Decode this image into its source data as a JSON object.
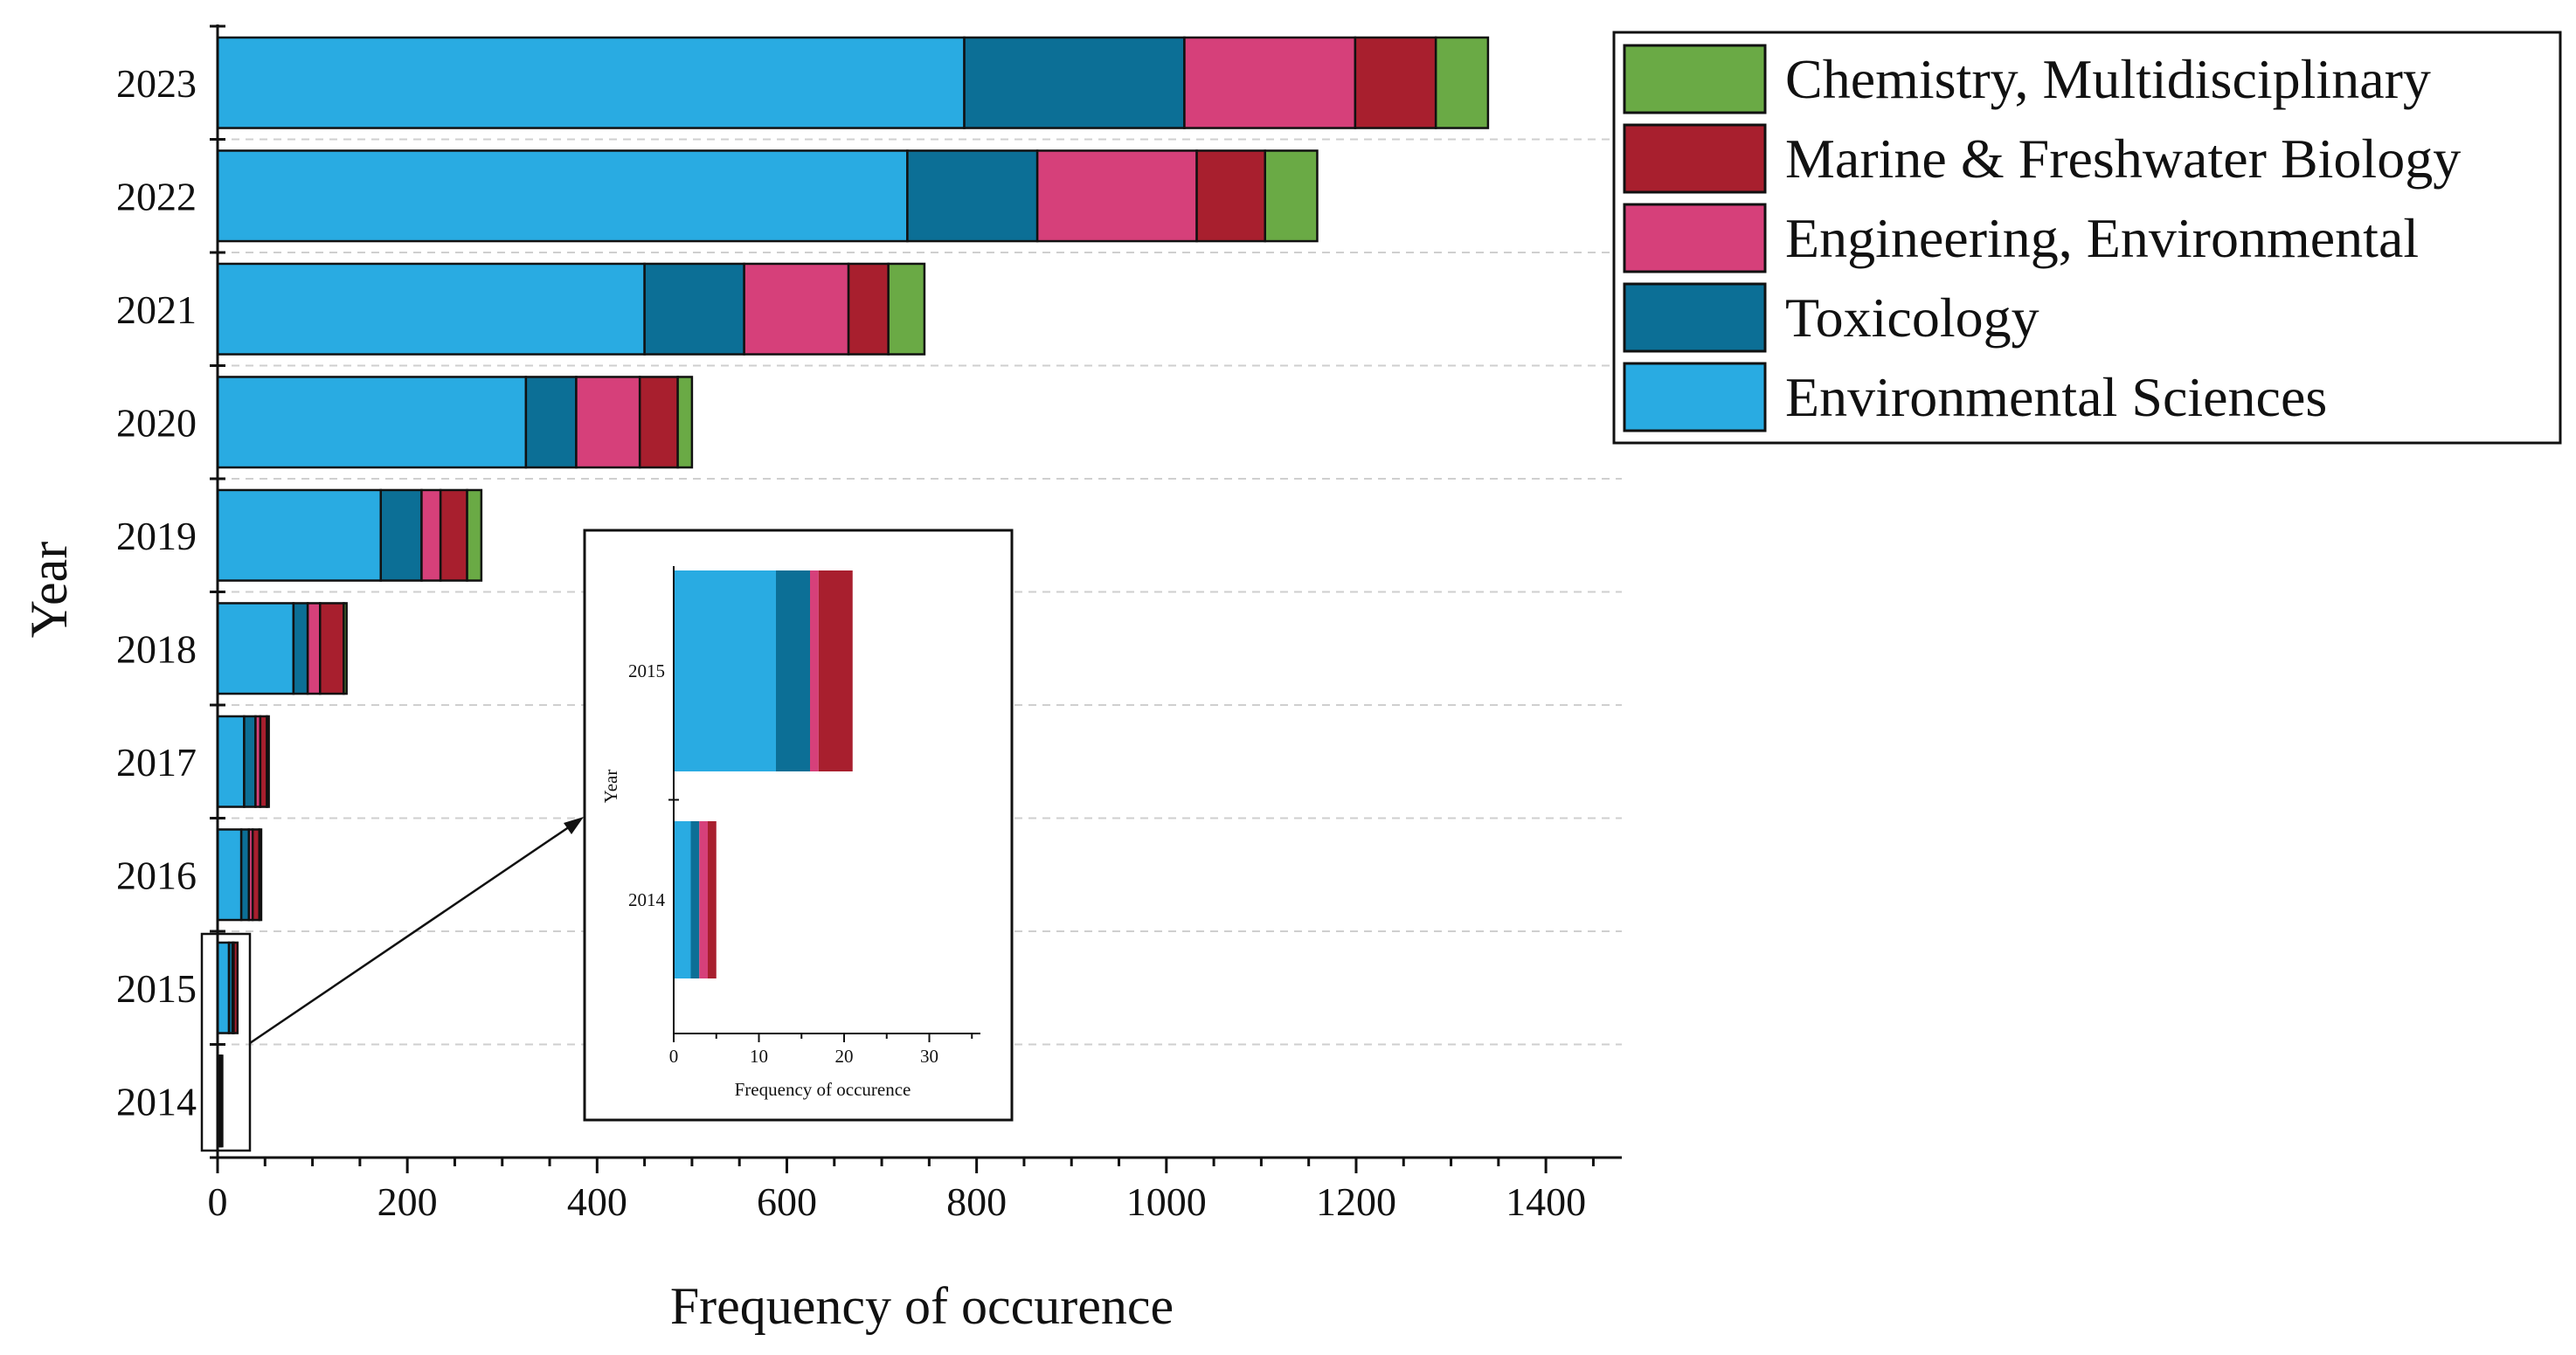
{
  "chart_data": {
    "type": "bar",
    "orientation": "horizontal",
    "stacked": true,
    "xlabel": "Frequency of occurence",
    "ylabel": "Year",
    "xlim": [
      0,
      1480
    ],
    "xticks": [
      0,
      200,
      400,
      600,
      800,
      1000,
      1200,
      1400
    ],
    "grid": "horizontal dashed",
    "legend_position": "top-right",
    "categories": [
      "2023",
      "2022",
      "2021",
      "2020",
      "2019",
      "2018",
      "2017",
      "2016",
      "2015",
      "2014"
    ],
    "series": [
      {
        "name": "Environmental Sciences",
        "color": "#29abe2",
        "values": [
          787,
          727,
          450,
          325,
          172,
          80,
          28,
          25,
          12,
          2
        ]
      },
      {
        "name": "Toxicology",
        "color": "#0c6f96",
        "values": [
          232,
          137,
          105,
          53,
          43,
          15,
          12,
          8,
          4,
          1
        ]
      },
      {
        "name": "Engineering, Environmental",
        "color": "#d6407a",
        "values": [
          180,
          168,
          110,
          67,
          20,
          13,
          5,
          4,
          1,
          1
        ]
      },
      {
        "name": "Marine & Freshwater Biology",
        "color": "#a81f2e",
        "values": [
          85,
          72,
          42,
          40,
          28,
          25,
          7,
          7,
          4,
          1
        ]
      },
      {
        "name": "Chemistry, Multidisciplinary",
        "color": "#6aaa45",
        "values": [
          55,
          55,
          38,
          15,
          15,
          3,
          2,
          2,
          0,
          0
        ]
      }
    ],
    "legend_order": [
      "Chemistry, Multidisciplinary",
      "Marine & Freshwater Biology",
      "Engineering, Environmental",
      "Toxicology",
      "Environmental Sciences"
    ],
    "inset": {
      "xlabel": "Frequency of occurence",
      "ylabel": "Year",
      "xlim": [
        0,
        36
      ],
      "xticks": [
        0,
        10,
        20,
        30
      ],
      "categories": [
        "2015",
        "2014"
      ],
      "values": {
        "Environmental Sciences": [
          12,
          2
        ],
        "Toxicology": [
          4,
          1
        ],
        "Engineering, Environmental": [
          1,
          1
        ],
        "Marine & Freshwater Biology": [
          4,
          1
        ],
        "Chemistry, Multidisciplinary": [
          0,
          0
        ]
      }
    }
  }
}
